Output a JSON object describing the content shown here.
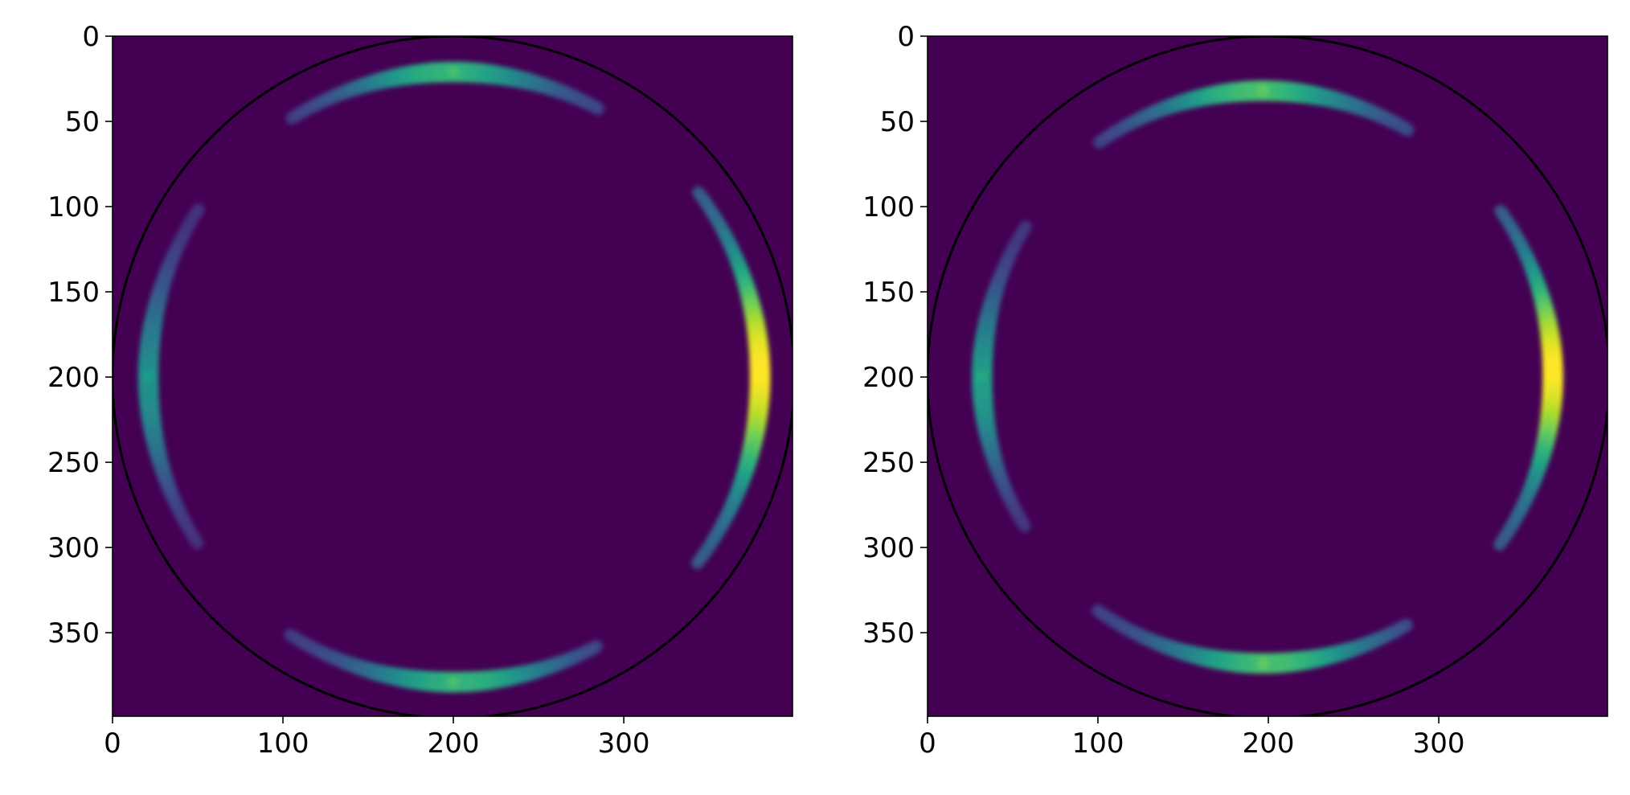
{
  "colors": {
    "background": "#ffffff",
    "colormap": "viridis",
    "circle": "#000000"
  },
  "chart_data": [
    {
      "type": "heatmap",
      "title": "",
      "xlabel": "",
      "ylabel": "",
      "xlim": [
        0,
        399
      ],
      "ylim": [
        399,
        0
      ],
      "y_axis_inverted": true,
      "grid": false,
      "xticks": [
        0,
        100,
        200,
        300
      ],
      "yticks": [
        0,
        50,
        100,
        150,
        200,
        250,
        300,
        350
      ],
      "circle": {
        "cx": 200,
        "cy": 200,
        "r": 200
      },
      "arcs": [
        {
          "cx": 200,
          "cy": 200,
          "r": 179,
          "from_deg": 62,
          "to_deg": 122,
          "peak_deg": 90,
          "peak_value": 0.65
        },
        {
          "cx": 200,
          "cy": 200,
          "r": 179,
          "from_deg": 238,
          "to_deg": 298,
          "peak_deg": 270,
          "peak_value": 0.65
        },
        {
          "cx": 200,
          "cy": 200,
          "r": 179,
          "from_deg": 147,
          "to_deg": 213,
          "peak_deg": 180,
          "peak_value": 0.5
        },
        {
          "cx": 200,
          "cy": 200,
          "r": 180,
          "from_deg": -37,
          "to_deg": 37,
          "peak_deg": 0,
          "peak_value": 1.0
        }
      ]
    },
    {
      "type": "heatmap",
      "title": "",
      "xlabel": "",
      "ylabel": "",
      "xlim": [
        0,
        399
      ],
      "ylim": [
        399,
        0
      ],
      "y_axis_inverted": true,
      "grid": false,
      "xticks": [
        0,
        100,
        200,
        300
      ],
      "yticks": [
        0,
        50,
        100,
        150,
        200,
        250,
        300,
        350
      ],
      "circle": {
        "cx": 200,
        "cy": 200,
        "r": 200
      },
      "arcs": [
        {
          "cx": 197,
          "cy": 200,
          "r": 168,
          "from_deg": 60,
          "to_deg": 125,
          "peak_deg": 90,
          "peak_value": 0.7
        },
        {
          "cx": 197,
          "cy": 200,
          "r": 168,
          "from_deg": 235,
          "to_deg": 300,
          "peak_deg": 270,
          "peak_value": 0.7
        },
        {
          "cx": 197,
          "cy": 200,
          "r": 165,
          "from_deg": 148,
          "to_deg": 212,
          "peak_deg": 180,
          "peak_value": 0.55
        },
        {
          "cx": 197,
          "cy": 200,
          "r": 170,
          "from_deg": -35,
          "to_deg": 35,
          "peak_deg": 0,
          "peak_value": 1.0
        }
      ]
    }
  ]
}
